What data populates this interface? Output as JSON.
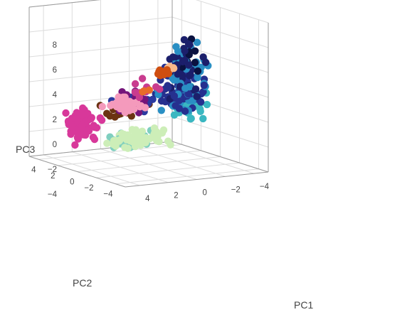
{
  "chart_data": {
    "type": "scatter3d",
    "title": "",
    "axes": {
      "x": {
        "label": "PC1",
        "range": [
          -5,
          5
        ],
        "ticks": [
          -4,
          -2,
          0,
          2,
          4
        ],
        "tick_labels": [
          "−4",
          "−2",
          "0",
          "2",
          "4"
        ]
      },
      "y": {
        "label": "PC2",
        "range": [
          -5,
          5
        ],
        "ticks": [
          -4,
          -2,
          0,
          2,
          4
        ],
        "tick_labels": [
          "−4",
          "−2",
          "0",
          "2",
          "4"
        ]
      },
      "z": {
        "label": "PC3",
        "range": [
          -4,
          8
        ],
        "ticks": [
          -4,
          -2,
          0,
          2,
          4,
          6,
          8
        ],
        "tick_labels": [
          "−4",
          "−2",
          "0",
          "2",
          "4",
          "6",
          "8"
        ]
      }
    },
    "grid": true,
    "legend": "none",
    "clusters": [
      {
        "color": "#1b1f6b",
        "count": 40,
        "center": [
          -0.8,
          -2.5,
          4.0
        ],
        "spread": [
          1.0,
          1.0,
          2.0
        ]
      },
      {
        "color": "#2a8fc4",
        "count": 70,
        "center": [
          -1.2,
          -2.0,
          3.5
        ],
        "spread": [
          1.3,
          1.2,
          2.2
        ]
      },
      {
        "color": "#26308f",
        "count": 70,
        "center": [
          -1.0,
          -1.8,
          2.3
        ],
        "spread": [
          1.3,
          1.2,
          1.8
        ]
      },
      {
        "color": "#0a1240",
        "count": 8,
        "center": [
          -1.0,
          -3.0,
          5.0
        ],
        "spread": [
          0.8,
          0.8,
          1.5
        ]
      },
      {
        "color": "#3ab7c1",
        "count": 50,
        "center": [
          -2.8,
          -0.2,
          0.5
        ],
        "spread": [
          0.8,
          1.4,
          1.2
        ]
      },
      {
        "color": "#cdeeb8",
        "count": 70,
        "center": [
          -0.5,
          1.5,
          -2.3
        ],
        "spread": [
          2.0,
          1.2,
          0.5
        ]
      },
      {
        "color": "#7fcfbf",
        "count": 30,
        "center": [
          -0.5,
          2.8,
          -2.8
        ],
        "spread": [
          1.2,
          0.8,
          0.5
        ]
      },
      {
        "color": "#2b3aa0",
        "count": 45,
        "center": [
          1.4,
          -0.3,
          1.2
        ],
        "spread": [
          1.3,
          1.0,
          0.6
        ]
      },
      {
        "color": "#6b3312",
        "count": 28,
        "center": [
          1.3,
          0.4,
          0.4
        ],
        "spread": [
          1.6,
          0.9,
          0.4
        ]
      },
      {
        "color": "#74157a",
        "count": 22,
        "center": [
          2.2,
          -1.3,
          1.5
        ],
        "spread": [
          1.3,
          1.0,
          1.0
        ]
      },
      {
        "color": "#d8389a",
        "count": 100,
        "center": [
          3.5,
          1.8,
          -0.8
        ],
        "spread": [
          0.9,
          1.0,
          1.0
        ]
      },
      {
        "color": "#f49abc",
        "count": 35,
        "center": [
          3.4,
          -2.3,
          1.8
        ],
        "spread": [
          1.0,
          0.8,
          0.5
        ]
      },
      {
        "color": "#e86c2a",
        "count": 3,
        "center": [
          3.2,
          -4.4,
          3.5
        ],
        "spread": [
          0.3,
          0.3,
          0.3
        ]
      },
      {
        "color": "#cf4e10",
        "count": 12,
        "center": [
          1.5,
          -3.8,
          4.5
        ],
        "spread": [
          0.4,
          0.3,
          0.3
        ]
      },
      {
        "color": "#fab98a",
        "count": 6,
        "center": [
          1.0,
          -3.6,
          4.6
        ],
        "spread": [
          0.3,
          0.3,
          0.3
        ]
      },
      {
        "color": "#c93c8f",
        "count": 10,
        "center": [
          2.6,
          -3.0,
          3.0
        ],
        "spread": [
          0.8,
          0.8,
          1.0
        ]
      }
    ]
  }
}
